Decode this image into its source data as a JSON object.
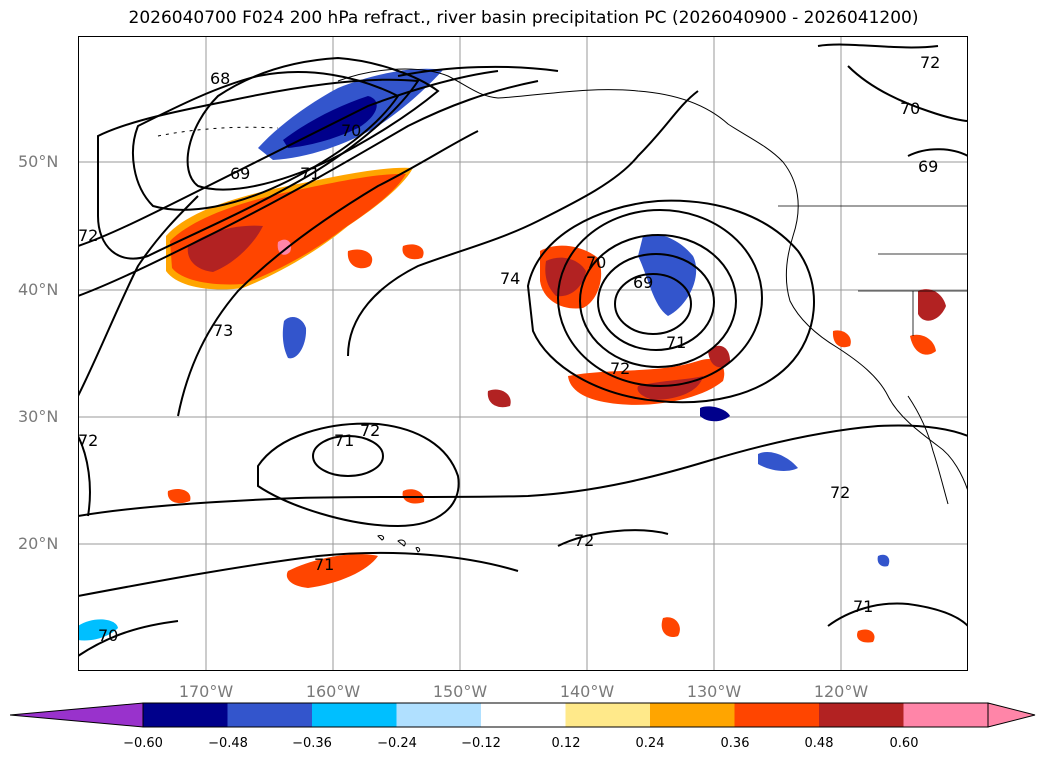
{
  "title": "2026040700 F024 200 hPa refract., river basin precipitation PC (2026040900 - 2026041200)",
  "lat_labels": [
    "50°N",
    "40°N",
    "30°N",
    "20°N"
  ],
  "lon_labels": [
    "170°W",
    "160°W",
    "150°W",
    "140°W",
    "130°W",
    "120°W"
  ],
  "contour_labels": [
    "68",
    "69",
    "70",
    "71",
    "72",
    "73",
    "74",
    "70",
    "69",
    "71",
    "72",
    "71",
    "72",
    "71",
    "72",
    "72",
    "72",
    "71",
    "70",
    "70",
    "69",
    "72"
  ],
  "colorbar": {
    "ticks": [
      "−0.60",
      "−0.48",
      "−0.36",
      "−0.24",
      "−0.12",
      "0.12",
      "0.24",
      "0.36",
      "0.48",
      "0.60"
    ],
    "colors": [
      "#9932cc",
      "#00008b",
      "#3355cc",
      "#00bfff",
      "#b0e0ff",
      "#ffffff",
      "#ffe98a",
      "#ffa500",
      "#ff4500",
      "#b22222",
      "#ff85a8",
      "#ff85a8"
    ]
  }
}
